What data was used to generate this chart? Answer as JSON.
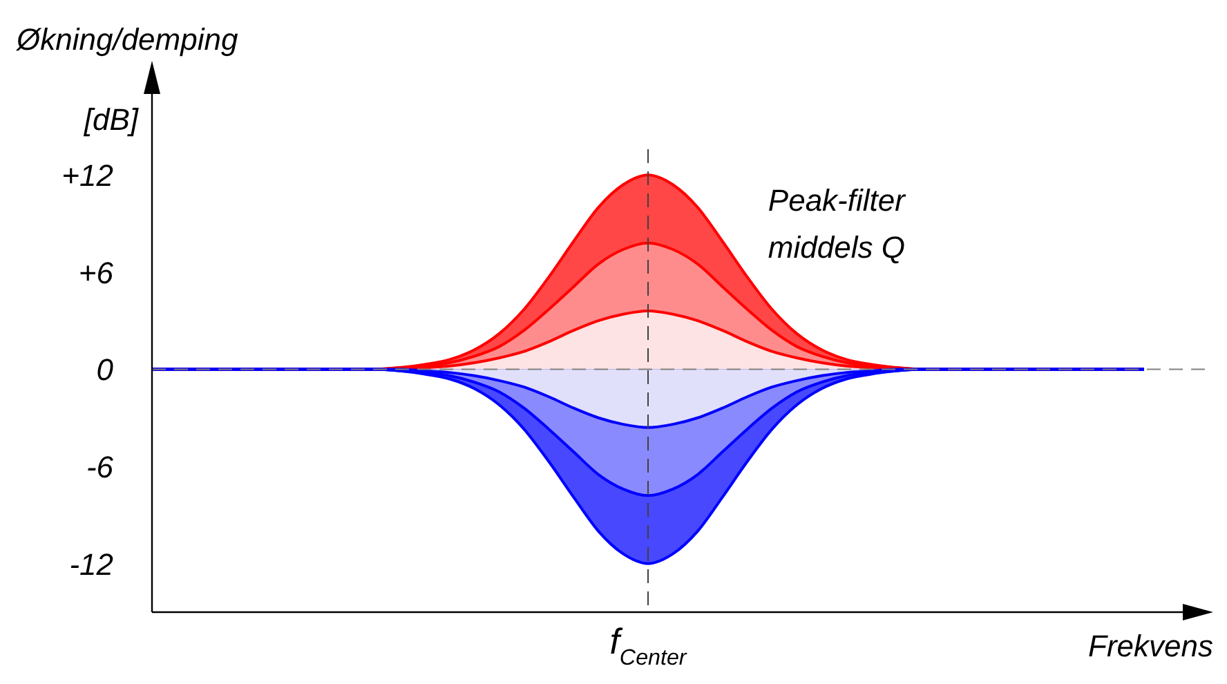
{
  "chart_data": {
    "type": "area",
    "ylabel": "Økning/demping",
    "xlabel": "Frekvens",
    "annotations": [
      "[dB]",
      "Peak-filter middels Q"
    ],
    "categories": [
      null,
      null,
      null,
      null,
      null,
      null,
      null,
      null,
      null,
      null,
      null,
      null,
      null,
      null,
      null,
      null,
      null,
      null,
      null,
      null,
      "f$_{Center}$",
      null,
      null,
      null,
      null,
      null,
      null,
      null,
      null,
      null,
      null,
      null,
      null,
      null,
      null,
      null,
      null,
      null,
      null,
      null,
      null
    ],
    "series": [
      {
        "color": "#ff4747",
        "values": [
          0,
          0,
          0,
          0,
          0,
          0,
          0,
          0,
          0,
          0,
          0.1,
          0.3,
          0.6,
          1.2,
          2.2,
          3.7,
          5.7,
          7.9,
          10,
          11.4,
          12,
          11.4,
          10,
          7.9,
          5.7,
          3.7,
          2.2,
          1.2,
          0.6,
          0.3,
          0.1,
          0,
          0,
          0,
          0,
          0,
          0,
          0,
          0,
          0,
          0
        ]
      },
      {
        "color": "#ff8c8c",
        "values": [
          0,
          0,
          0,
          0,
          0,
          0,
          0,
          0,
          0,
          0,
          0.1,
          0.2,
          0.4,
          0.8,
          1.4,
          2.4,
          3.7,
          5.1,
          6.5,
          7.4,
          7.8,
          7.4,
          6.5,
          5.1,
          3.7,
          2.4,
          1.4,
          0.8,
          0.4,
          0.2,
          0.1,
          0,
          0,
          0,
          0,
          0,
          0,
          0,
          0,
          0,
          0
        ]
      },
      {
        "color": "#fde3e3",
        "values": [
          0,
          0,
          0,
          0,
          0,
          0,
          0,
          0,
          0,
          0,
          0,
          0.1,
          0.2,
          0.4,
          0.7,
          1.1,
          1.7,
          2.4,
          3,
          3.4,
          3.6,
          3.4,
          3,
          2.4,
          1.7,
          1.1,
          0.7,
          0.4,
          0.2,
          0.1,
          0,
          0,
          0,
          0,
          0,
          0,
          0,
          0,
          0,
          0,
          0
        ]
      },
      {
        "color": "#4848ff",
        "values": [
          0,
          0,
          0,
          0,
          0,
          0,
          0,
          0,
          0,
          0,
          -0.1,
          -0.3,
          -0.6,
          -1.2,
          -2.2,
          -3.7,
          -5.7,
          -7.9,
          -10,
          -11.4,
          -12,
          -11.4,
          -10,
          -7.9,
          -5.7,
          -3.7,
          -2.2,
          -1.2,
          -0.6,
          -0.3,
          -0.1,
          0,
          0,
          0,
          0,
          0,
          0,
          0,
          0,
          0,
          0
        ]
      },
      {
        "color": "#8a8aff",
        "values": [
          0,
          0,
          0,
          0,
          0,
          0,
          0,
          0,
          0,
          0,
          -0.1,
          -0.2,
          -0.4,
          -0.8,
          -1.4,
          -2.4,
          -3.7,
          -5.1,
          -6.5,
          -7.4,
          -7.8,
          -7.4,
          -6.5,
          -5.1,
          -3.7,
          -2.4,
          -1.4,
          -0.8,
          -0.4,
          -0.2,
          -0.1,
          0,
          0,
          0,
          0,
          0,
          0,
          0,
          0,
          0,
          0
        ]
      },
      {
        "color": "#e0e0fb",
        "values": [
          0,
          0,
          0,
          0,
          0,
          0,
          0,
          0,
          0,
          0,
          0,
          -0.1,
          -0.2,
          -0.4,
          -0.7,
          -1.1,
          -1.7,
          -2.4,
          -3,
          -3.4,
          -3.6,
          -3.4,
          -3,
          -2.4,
          -1.7,
          -1.1,
          -0.7,
          -0.4,
          -0.2,
          -0.1,
          0,
          0,
          0,
          0,
          0,
          0,
          0,
          0,
          0,
          0,
          0
        ]
      }
    ],
    "ylim": [
      -15,
      17
    ],
    "yticks": [
      {
        "value": 12,
        "label": "+12"
      },
      {
        "value": 6,
        "label": "+6"
      },
      0,
      -6,
      -12
    ],
    "ref_lines": [
      {
        "axis": "y",
        "value": 0,
        "color": "#808080",
        "line_style": "dashed"
      },
      {
        "axis": "x",
        "value": "f$_{Center}$",
        "color": "#404040",
        "line_style": "dashed"
      }
    ],
    "grid": false,
    "legend": false,
    "marker": "none",
    "line_style": "solid"
  }
}
